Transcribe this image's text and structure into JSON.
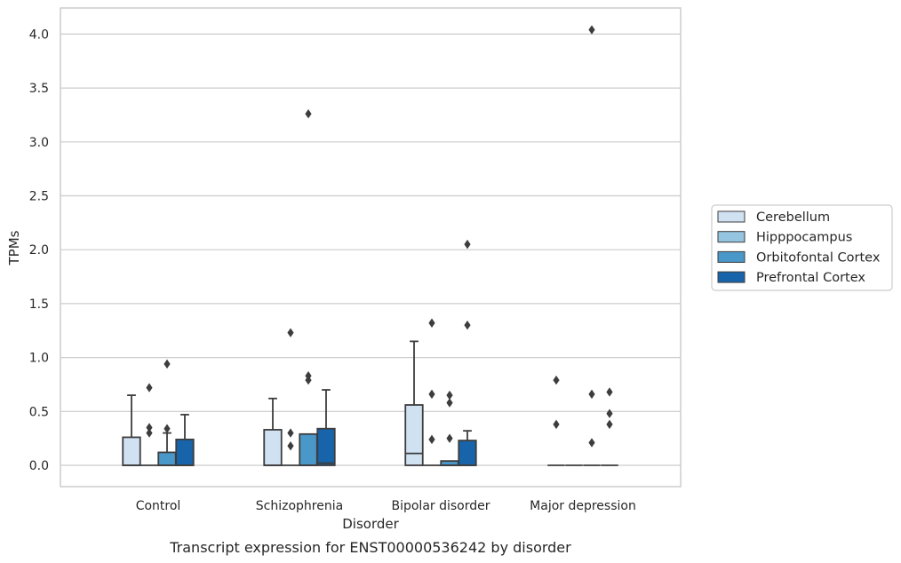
{
  "chart_data": {
    "type": "box",
    "caption": "Transcript expression for ENST00000536242 by disorder",
    "xlabel": "Disorder",
    "ylabel": "TPMs",
    "ylim": [
      -0.2,
      4.25
    ],
    "yticks": [
      "0.0",
      "0.5",
      "1.0",
      "1.5",
      "2.0",
      "2.5",
      "3.0",
      "3.5",
      "4.0"
    ],
    "grid": "horizontal",
    "legend_position": "right",
    "categories": [
      "Control",
      "Schizophrenia",
      "Bipolar disorder",
      "Major depression"
    ],
    "series": [
      {
        "name": "Cerebellum",
        "color": "#d0e1f2",
        "boxes": [
          {
            "q1": 0,
            "median": 0,
            "q3": 0.26,
            "whisker_low": 0,
            "whisker_high": 0.65,
            "outliers": []
          },
          {
            "q1": 0,
            "median": 0,
            "q3": 0.33,
            "whisker_low": 0,
            "whisker_high": 0.62,
            "outliers": []
          },
          {
            "q1": 0,
            "median": 0.11,
            "q3": 0.56,
            "whisker_low": 0,
            "whisker_high": 1.15,
            "outliers": []
          },
          {
            "q1": 0,
            "median": 0,
            "q3": 0,
            "whisker_low": 0,
            "whisker_high": 0,
            "outliers": [
              0.79,
              0.38
            ]
          }
        ]
      },
      {
        "name": "Hipppocampus",
        "color": "#94c4df",
        "boxes": [
          {
            "q1": 0,
            "median": 0,
            "q3": 0,
            "whisker_low": 0,
            "whisker_high": 0,
            "outliers": [
              0.72,
              0.35,
              0.3
            ]
          },
          {
            "q1": 0,
            "median": 0,
            "q3": 0,
            "whisker_low": 0,
            "whisker_high": 0,
            "outliers": [
              1.23,
              0.3,
              0.18
            ]
          },
          {
            "q1": 0,
            "median": 0,
            "q3": 0,
            "whisker_low": 0,
            "whisker_high": 0,
            "outliers": [
              1.32,
              0.66,
              0.24
            ]
          },
          {
            "q1": 0,
            "median": 0,
            "q3": 0,
            "whisker_low": 0,
            "whisker_high": 0,
            "outliers": []
          }
        ]
      },
      {
        "name": "Orbitofontal Cortex",
        "color": "#4a98c9",
        "boxes": [
          {
            "q1": 0,
            "median": 0,
            "q3": 0.12,
            "whisker_low": 0,
            "whisker_high": 0.3,
            "outliers": [
              0.94,
              0.34
            ]
          },
          {
            "q1": 0,
            "median": 0,
            "q3": 0.29,
            "whisker_low": 0,
            "whisker_high": 0.29,
            "outliers": [
              3.26,
              0.83,
              0.79
            ]
          },
          {
            "q1": 0,
            "median": 0,
            "q3": 0.04,
            "whisker_low": 0,
            "whisker_high": 0.04,
            "outliers": [
              0.65,
              0.58,
              0.25
            ]
          },
          {
            "q1": 0,
            "median": 0,
            "q3": 0,
            "whisker_low": 0,
            "whisker_high": 0,
            "outliers": [
              4.04,
              0.66,
              0.21
            ]
          }
        ]
      },
      {
        "name": "Prefrontal Cortex",
        "color": "#1764ab",
        "boxes": [
          {
            "q1": 0,
            "median": 0,
            "q3": 0.24,
            "whisker_low": 0,
            "whisker_high": 0.47,
            "outliers": []
          },
          {
            "q1": 0,
            "median": 0.02,
            "q3": 0.34,
            "whisker_low": 0,
            "whisker_high": 0.7,
            "outliers": []
          },
          {
            "q1": 0,
            "median": 0,
            "q3": 0.23,
            "whisker_low": 0,
            "whisker_high": 0.32,
            "outliers": [
              2.05,
              1.3
            ]
          },
          {
            "q1": 0,
            "median": 0,
            "q3": 0,
            "whisker_low": 0,
            "whisker_high": 0,
            "outliers": [
              0.68,
              0.48,
              0.38
            ]
          }
        ]
      }
    ]
  }
}
